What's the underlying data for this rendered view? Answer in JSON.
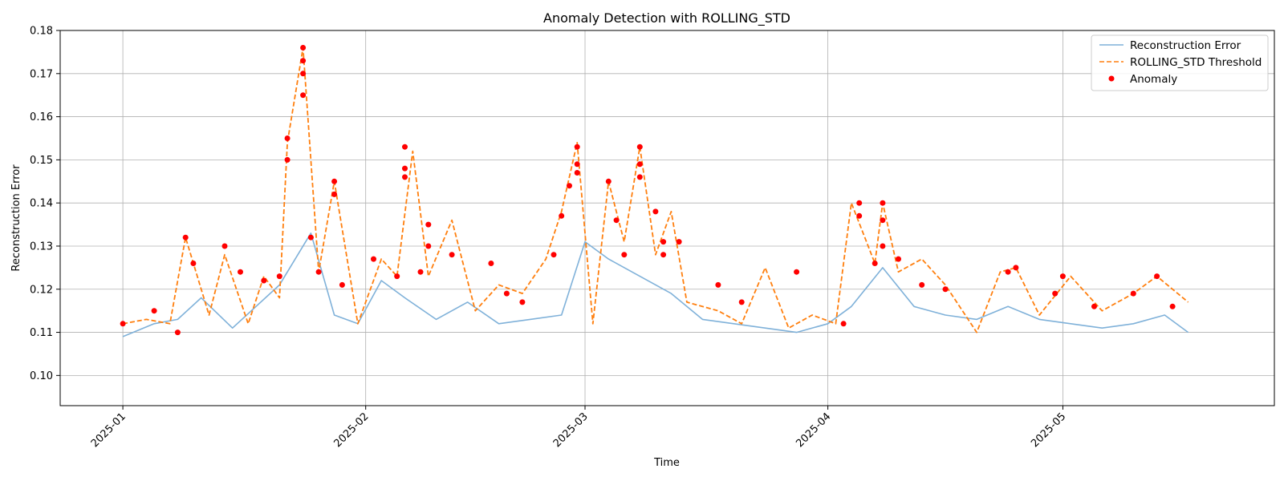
{
  "chart_data": {
    "type": "line",
    "title": "Anomaly Detection with ROLLING_STD",
    "xlabel": "Time",
    "ylabel": "Reconstruction Error",
    "x_range": [
      "2024-12-24",
      "2025-05-28"
    ],
    "ylim": [
      0.093,
      0.18
    ],
    "x_ticks": [
      "2025-01",
      "2025-02",
      "2025-03",
      "2025-04",
      "2025-05"
    ],
    "x_tick_dates": [
      "2025-01-01",
      "2025-02-01",
      "2025-03-01",
      "2025-04-01",
      "2025-05-01"
    ],
    "y_ticks": [
      0.1,
      0.11,
      0.12,
      0.13,
      0.14,
      0.15,
      0.16,
      0.17,
      0.18
    ],
    "y_tick_labels": [
      "0.10",
      "0.11",
      "0.12",
      "0.13",
      "0.14",
      "0.15",
      "0.16",
      "0.17",
      "0.18"
    ],
    "grid": true,
    "legend_position": "top-right",
    "series": [
      {
        "name": "Reconstruction Error",
        "color": "#7fb1d9",
        "style": "solid",
        "x": [
          "2025-01-01",
          "2025-01-05",
          "2025-01-08",
          "2025-01-11",
          "2025-01-15",
          "2025-01-18",
          "2025-01-21",
          "2025-01-25",
          "2025-01-28",
          "2025-01-31",
          "2025-02-03",
          "2025-02-06",
          "2025-02-10",
          "2025-02-14",
          "2025-02-18",
          "2025-02-22",
          "2025-02-26",
          "2025-03-01",
          "2025-03-04",
          "2025-03-08",
          "2025-03-12",
          "2025-03-16",
          "2025-03-20",
          "2025-03-24",
          "2025-03-28",
          "2025-04-01",
          "2025-04-04",
          "2025-04-08",
          "2025-04-12",
          "2025-04-16",
          "2025-04-20",
          "2025-04-24",
          "2025-04-28",
          "2025-05-02",
          "2025-05-06",
          "2025-05-10",
          "2025-05-14",
          "2025-05-17"
        ],
        "values": [
          0.109,
          0.112,
          0.113,
          0.118,
          0.111,
          0.116,
          0.121,
          0.133,
          0.114,
          0.112,
          0.122,
          0.118,
          0.113,
          0.117,
          0.112,
          0.113,
          0.114,
          0.131,
          0.127,
          0.123,
          0.119,
          0.113,
          0.112,
          0.111,
          0.11,
          0.112,
          0.116,
          0.125,
          0.116,
          0.114,
          0.113,
          0.116,
          0.113,
          0.112,
          0.111,
          0.112,
          0.114,
          0.11
        ]
      },
      {
        "name": "ROLLING_STD Threshold",
        "color": "#ff7f0e",
        "style": "dashed",
        "x": [
          "2025-01-01",
          "2025-01-04",
          "2025-01-07",
          "2025-01-09",
          "2025-01-12",
          "2025-01-14",
          "2025-01-17",
          "2025-01-19",
          "2025-01-21",
          "2025-01-22",
          "2025-01-24",
          "2025-01-26",
          "2025-01-28",
          "2025-01-31",
          "2025-02-03",
          "2025-02-05",
          "2025-02-07",
          "2025-02-09",
          "2025-02-12",
          "2025-02-15",
          "2025-02-18",
          "2025-02-21",
          "2025-02-24",
          "2025-02-26",
          "2025-02-28",
          "2025-03-02",
          "2025-03-04",
          "2025-03-06",
          "2025-03-08",
          "2025-03-10",
          "2025-03-12",
          "2025-03-14",
          "2025-03-18",
          "2025-03-21",
          "2025-03-24",
          "2025-03-27",
          "2025-03-30",
          "2025-04-02",
          "2025-04-04",
          "2025-04-07",
          "2025-04-08",
          "2025-04-10",
          "2025-04-13",
          "2025-04-16",
          "2025-04-20",
          "2025-04-23",
          "2025-04-25",
          "2025-04-28",
          "2025-05-02",
          "2025-05-06",
          "2025-05-10",
          "2025-05-13",
          "2025-05-17"
        ],
        "values": [
          0.112,
          0.113,
          0.112,
          0.132,
          0.114,
          0.128,
          0.112,
          0.123,
          0.118,
          0.154,
          0.176,
          0.124,
          0.145,
          0.112,
          0.127,
          0.123,
          0.152,
          0.123,
          0.136,
          0.115,
          0.121,
          0.119,
          0.127,
          0.138,
          0.154,
          0.112,
          0.145,
          0.131,
          0.153,
          0.128,
          0.138,
          0.117,
          0.115,
          0.112,
          0.125,
          0.111,
          0.114,
          0.112,
          0.14,
          0.126,
          0.14,
          0.124,
          0.127,
          0.121,
          0.11,
          0.124,
          0.125,
          0.114,
          0.123,
          0.115,
          0.119,
          0.123,
          0.117
        ]
      }
    ],
    "anomalies": {
      "name": "Anomaly",
      "color": "#ff0000",
      "x": [
        "2025-01-01",
        "2025-01-05",
        "2025-01-08",
        "2025-01-09",
        "2025-01-10",
        "2025-01-14",
        "2025-01-16",
        "2025-01-19",
        "2025-01-21",
        "2025-01-22",
        "2025-01-22",
        "2025-01-24",
        "2025-01-24",
        "2025-01-24",
        "2025-01-24",
        "2025-01-25",
        "2025-01-26",
        "2025-01-28",
        "2025-01-28",
        "2025-01-29",
        "2025-02-02",
        "2025-02-05",
        "2025-02-06",
        "2025-02-06",
        "2025-02-06",
        "2025-02-08",
        "2025-02-09",
        "2025-02-09",
        "2025-02-12",
        "2025-02-17",
        "2025-02-19",
        "2025-02-21",
        "2025-02-25",
        "2025-02-26",
        "2025-02-27",
        "2025-02-28",
        "2025-02-28",
        "2025-02-28",
        "2025-03-04",
        "2025-03-05",
        "2025-03-06",
        "2025-03-08",
        "2025-03-08",
        "2025-03-08",
        "2025-03-10",
        "2025-03-11",
        "2025-03-11",
        "2025-03-13",
        "2025-03-18",
        "2025-03-21",
        "2025-03-28",
        "2025-04-03",
        "2025-04-05",
        "2025-04-05",
        "2025-04-07",
        "2025-04-08",
        "2025-04-08",
        "2025-04-08",
        "2025-04-10",
        "2025-04-13",
        "2025-04-16",
        "2025-04-24",
        "2025-04-25",
        "2025-04-30",
        "2025-05-01",
        "2025-05-05",
        "2025-05-10",
        "2025-05-13",
        "2025-05-15"
      ],
      "values": [
        0.112,
        0.115,
        0.11,
        0.132,
        0.126,
        0.13,
        0.124,
        0.122,
        0.123,
        0.155,
        0.15,
        0.176,
        0.173,
        0.17,
        0.165,
        0.132,
        0.124,
        0.145,
        0.142,
        0.121,
        0.127,
        0.123,
        0.153,
        0.148,
        0.146,
        0.124,
        0.135,
        0.13,
        0.128,
        0.126,
        0.119,
        0.117,
        0.128,
        0.137,
        0.144,
        0.153,
        0.149,
        0.147,
        0.145,
        0.136,
        0.128,
        0.153,
        0.149,
        0.146,
        0.138,
        0.131,
        0.128,
        0.131,
        0.121,
        0.117,
        0.124,
        0.112,
        0.14,
        0.137,
        0.126,
        0.13,
        0.14,
        0.136,
        0.127,
        0.121,
        0.12,
        0.124,
        0.125,
        0.119,
        0.123,
        0.116,
        0.119,
        0.123,
        0.116
      ]
    }
  }
}
